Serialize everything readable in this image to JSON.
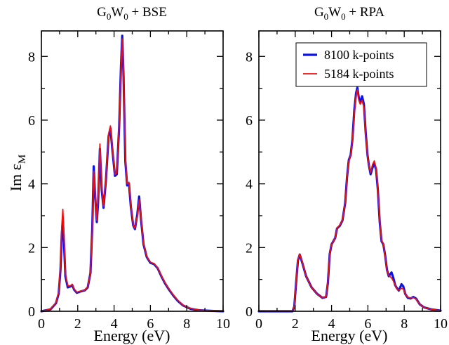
{
  "colors": {
    "series_a": "#0a14e6",
    "series_b": "#ee1010"
  },
  "chart_data": [
    {
      "type": "line",
      "title": "G0W0 + BSE",
      "title_parts": {
        "pre": "G",
        "sub1": "0",
        "mid": "W",
        "sub2": "0",
        "post": " + BSE"
      },
      "xlabel": "Energy (eV)",
      "ylabel": "Im εM",
      "ylabel_parts": {
        "main": "Im ε",
        "sub": "M"
      },
      "xlim": [
        0,
        10
      ],
      "ylim": [
        0,
        8.8
      ],
      "xticks": [
        0,
        2,
        4,
        6,
        8,
        10
      ],
      "yticks": [
        0,
        2,
        4,
        6,
        8
      ],
      "grid": false,
      "legend": null,
      "series": [
        {
          "name": "8100 k-points",
          "color": "#0a14e6",
          "points": [
            [
              0,
              0
            ],
            [
              0.5,
              0.06
            ],
            [
              0.8,
              0.25
            ],
            [
              0.95,
              0.55
            ],
            [
              1.05,
              1.3
            ],
            [
              1.12,
              2.4
            ],
            [
              1.18,
              2.85
            ],
            [
              1.24,
              2.2
            ],
            [
              1.32,
              1.1
            ],
            [
              1.45,
              0.75
            ],
            [
              1.6,
              0.78
            ],
            [
              1.7,
              0.82
            ],
            [
              1.8,
              0.68
            ],
            [
              1.95,
              0.58
            ],
            [
              2.15,
              0.62
            ],
            [
              2.4,
              0.66
            ],
            [
              2.55,
              0.75
            ],
            [
              2.7,
              1.2
            ],
            [
              2.8,
              2.6
            ],
            [
              2.88,
              4.55
            ],
            [
              2.95,
              3.7
            ],
            [
              3.05,
              2.8
            ],
            [
              3.12,
              3.4
            ],
            [
              3.22,
              5.1
            ],
            [
              3.32,
              3.8
            ],
            [
              3.42,
              3.25
            ],
            [
              3.55,
              4.1
            ],
            [
              3.7,
              5.5
            ],
            [
              3.8,
              5.75
            ],
            [
              3.9,
              5.1
            ],
            [
              4.05,
              4.25
            ],
            [
              4.15,
              4.3
            ],
            [
              4.28,
              5.8
            ],
            [
              4.38,
              7.7
            ],
            [
              4.45,
              8.65
            ],
            [
              4.52,
              7.4
            ],
            [
              4.62,
              4.7
            ],
            [
              4.72,
              3.95
            ],
            [
              4.82,
              4.0
            ],
            [
              4.92,
              3.3
            ],
            [
              5.05,
              2.7
            ],
            [
              5.15,
              2.58
            ],
            [
              5.28,
              3.05
            ],
            [
              5.38,
              3.6
            ],
            [
              5.48,
              2.9
            ],
            [
              5.62,
              2.1
            ],
            [
              5.8,
              1.7
            ],
            [
              6.0,
              1.52
            ],
            [
              6.2,
              1.48
            ],
            [
              6.4,
              1.35
            ],
            [
              6.6,
              1.1
            ],
            [
              6.8,
              0.88
            ],
            [
              7.0,
              0.7
            ],
            [
              7.25,
              0.5
            ],
            [
              7.5,
              0.33
            ],
            [
              7.8,
              0.18
            ],
            [
              8.2,
              0.08
            ],
            [
              8.7,
              0.03
            ],
            [
              9.5,
              0.01
            ],
            [
              10,
              0
            ]
          ]
        },
        {
          "name": "5184 k-points",
          "color": "#ee1010",
          "points": [
            [
              0,
              0
            ],
            [
              0.5,
              0.07
            ],
            [
              0.8,
              0.27
            ],
            [
              0.95,
              0.6
            ],
            [
              1.05,
              1.45
            ],
            [
              1.12,
              2.65
            ],
            [
              1.18,
              3.2
            ],
            [
              1.24,
              2.45
            ],
            [
              1.32,
              1.2
            ],
            [
              1.45,
              0.8
            ],
            [
              1.6,
              0.8
            ],
            [
              1.7,
              0.85
            ],
            [
              1.8,
              0.7
            ],
            [
              1.95,
              0.6
            ],
            [
              2.15,
              0.63
            ],
            [
              2.4,
              0.67
            ],
            [
              2.55,
              0.76
            ],
            [
              2.7,
              1.2
            ],
            [
              2.8,
              2.5
            ],
            [
              2.88,
              4.4
            ],
            [
              2.95,
              3.75
            ],
            [
              3.05,
              2.85
            ],
            [
              3.12,
              3.5
            ],
            [
              3.22,
              5.25
            ],
            [
              3.32,
              3.9
            ],
            [
              3.42,
              3.3
            ],
            [
              3.55,
              4.15
            ],
            [
              3.7,
              5.55
            ],
            [
              3.8,
              5.82
            ],
            [
              3.9,
              5.15
            ],
            [
              4.05,
              4.3
            ],
            [
              4.15,
              4.35
            ],
            [
              4.28,
              5.85
            ],
            [
              4.38,
              7.6
            ],
            [
              4.45,
              8.55
            ],
            [
              4.52,
              7.5
            ],
            [
              4.62,
              4.8
            ],
            [
              4.72,
              4.0
            ],
            [
              4.82,
              4.05
            ],
            [
              4.92,
              3.35
            ],
            [
              5.05,
              2.72
            ],
            [
              5.15,
              2.6
            ],
            [
              5.28,
              3.0
            ],
            [
              5.38,
              3.5
            ],
            [
              5.48,
              2.95
            ],
            [
              5.62,
              2.12
            ],
            [
              5.8,
              1.72
            ],
            [
              6.0,
              1.54
            ],
            [
              6.2,
              1.5
            ],
            [
              6.4,
              1.36
            ],
            [
              6.6,
              1.12
            ],
            [
              6.8,
              0.9
            ],
            [
              7.0,
              0.72
            ],
            [
              7.25,
              0.52
            ],
            [
              7.5,
              0.35
            ],
            [
              7.8,
              0.19
            ],
            [
              8.2,
              0.09
            ],
            [
              8.7,
              0.035
            ],
            [
              9.5,
              0.01
            ],
            [
              10,
              0
            ]
          ]
        }
      ]
    },
    {
      "type": "line",
      "title": "G0W0 + RPA",
      "title_parts": {
        "pre": "G",
        "sub1": "0",
        "mid": "W",
        "sub2": "0",
        "post": " + RPA"
      },
      "xlabel": "Energy (eV)",
      "xlim": [
        0,
        10
      ],
      "ylim": [
        0,
        8.8
      ],
      "xticks": [
        0,
        2,
        4,
        6,
        8,
        10
      ],
      "yticks": [
        0,
        2,
        4,
        6,
        8
      ],
      "grid": false,
      "legend": "top-right",
      "series": [
        {
          "name": "8100 k-points",
          "color": "#0a14e6",
          "points": [
            [
              0,
              0.0
            ],
            [
              1.5,
              0.0
            ],
            [
              1.85,
              0.0
            ],
            [
              1.95,
              0.15
            ],
            [
              2.05,
              0.9
            ],
            [
              2.15,
              1.6
            ],
            [
              2.25,
              1.78
            ],
            [
              2.4,
              1.5
            ],
            [
              2.6,
              1.1
            ],
            [
              2.9,
              0.75
            ],
            [
              3.2,
              0.55
            ],
            [
              3.5,
              0.42
            ],
            [
              3.7,
              0.45
            ],
            [
              3.8,
              0.9
            ],
            [
              3.9,
              1.8
            ],
            [
              4.0,
              2.1
            ],
            [
              4.2,
              2.3
            ],
            [
              4.3,
              2.6
            ],
            [
              4.45,
              2.68
            ],
            [
              4.6,
              2.85
            ],
            [
              4.75,
              3.4
            ],
            [
              4.85,
              4.2
            ],
            [
              4.95,
              4.75
            ],
            [
              5.05,
              4.9
            ],
            [
              5.15,
              5.4
            ],
            [
              5.25,
              6.3
            ],
            [
              5.35,
              6.85
            ],
            [
              5.42,
              7.02
            ],
            [
              5.5,
              6.7
            ],
            [
              5.58,
              6.55
            ],
            [
              5.68,
              6.75
            ],
            [
              5.78,
              6.5
            ],
            [
              5.88,
              5.6
            ],
            [
              5.98,
              4.9
            ],
            [
              6.05,
              4.6
            ],
            [
              6.15,
              4.3
            ],
            [
              6.25,
              4.5
            ],
            [
              6.35,
              4.65
            ],
            [
              6.45,
              4.45
            ],
            [
              6.55,
              3.8
            ],
            [
              6.65,
              2.8
            ],
            [
              6.75,
              2.2
            ],
            [
              6.85,
              2.1
            ],
            [
              6.95,
              1.75
            ],
            [
              7.05,
              1.3
            ],
            [
              7.15,
              1.1
            ],
            [
              7.3,
              1.22
            ],
            [
              7.4,
              1.05
            ],
            [
              7.5,
              0.82
            ],
            [
              7.6,
              0.72
            ],
            [
              7.7,
              0.65
            ],
            [
              7.85,
              0.85
            ],
            [
              7.95,
              0.78
            ],
            [
              8.05,
              0.55
            ],
            [
              8.2,
              0.42
            ],
            [
              8.35,
              0.4
            ],
            [
              8.5,
              0.45
            ],
            [
              8.65,
              0.4
            ],
            [
              8.85,
              0.22
            ],
            [
              9.1,
              0.12
            ],
            [
              9.5,
              0.06
            ],
            [
              10,
              0.02
            ]
          ]
        },
        {
          "name": "5184 k-points",
          "color": "#ee1010",
          "points": [
            [
              0,
              0.0
            ],
            [
              1.5,
              0.0
            ],
            [
              1.85,
              0.0
            ],
            [
              1.95,
              0.16
            ],
            [
              2.05,
              0.92
            ],
            [
              2.15,
              1.62
            ],
            [
              2.25,
              1.8
            ],
            [
              2.4,
              1.52
            ],
            [
              2.6,
              1.1
            ],
            [
              2.9,
              0.75
            ],
            [
              3.2,
              0.55
            ],
            [
              3.5,
              0.42
            ],
            [
              3.7,
              0.46
            ],
            [
              3.8,
              0.92
            ],
            [
              3.9,
              1.8
            ],
            [
              4.0,
              2.1
            ],
            [
              4.2,
              2.3
            ],
            [
              4.3,
              2.62
            ],
            [
              4.45,
              2.7
            ],
            [
              4.6,
              2.86
            ],
            [
              4.75,
              3.4
            ],
            [
              4.85,
              4.2
            ],
            [
              4.95,
              4.72
            ],
            [
              5.05,
              4.88
            ],
            [
              5.15,
              5.35
            ],
            [
              5.25,
              6.2
            ],
            [
              5.35,
              6.78
            ],
            [
              5.42,
              6.95
            ],
            [
              5.5,
              6.62
            ],
            [
              5.58,
              6.5
            ],
            [
              5.68,
              6.62
            ],
            [
              5.78,
              6.4
            ],
            [
              5.88,
              5.55
            ],
            [
              5.98,
              4.88
            ],
            [
              6.05,
              4.6
            ],
            [
              6.15,
              4.35
            ],
            [
              6.25,
              4.6
            ],
            [
              6.35,
              4.72
            ],
            [
              6.45,
              4.5
            ],
            [
              6.55,
              3.85
            ],
            [
              6.65,
              2.85
            ],
            [
              6.75,
              2.22
            ],
            [
              6.85,
              2.12
            ],
            [
              6.95,
              1.72
            ],
            [
              7.05,
              1.28
            ],
            [
              7.15,
              1.12
            ],
            [
              7.3,
              1.05
            ],
            [
              7.4,
              0.95
            ],
            [
              7.5,
              0.82
            ],
            [
              7.6,
              0.7
            ],
            [
              7.7,
              0.66
            ],
            [
              7.85,
              0.72
            ],
            [
              7.95,
              0.7
            ],
            [
              8.05,
              0.55
            ],
            [
              8.2,
              0.44
            ],
            [
              8.35,
              0.42
            ],
            [
              8.5,
              0.43
            ],
            [
              8.65,
              0.38
            ],
            [
              8.85,
              0.22
            ],
            [
              9.1,
              0.12
            ],
            [
              9.5,
              0.06
            ],
            [
              10,
              0.02
            ]
          ]
        }
      ]
    }
  ]
}
